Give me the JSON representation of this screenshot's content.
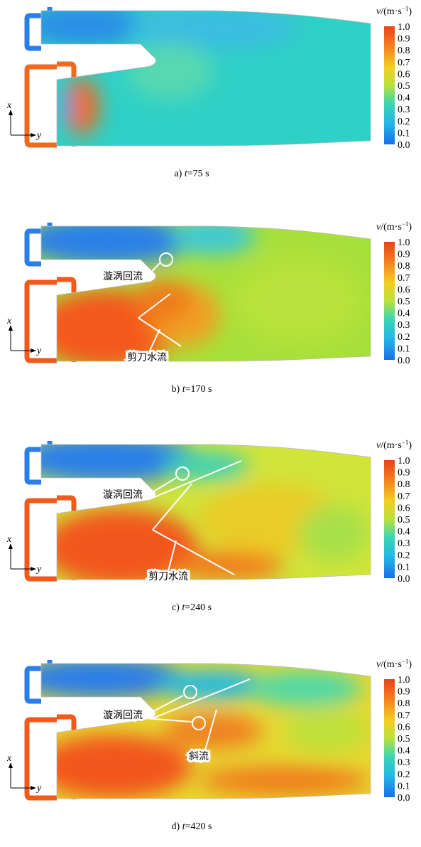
{
  "colorbar": {
    "symbol": "v",
    "unit": "/(m·s",
    "exponent": "−1",
    "close": ")",
    "ticks": [
      "1.0",
      "0.9",
      "0.8",
      "0.7",
      "0.6",
      "0.5",
      "0.4",
      "0.3",
      "0.2",
      "0.1",
      "0.0"
    ]
  },
  "axes": {
    "x": "x",
    "y": "y"
  },
  "panels": [
    {
      "label": "a)",
      "variable": "t",
      "rest": "=75 s",
      "annotations": []
    },
    {
      "label": "b)",
      "variable": "t",
      "rest": "=170 s",
      "annotations": [
        "漩涡回流",
        "剪刀水流"
      ]
    },
    {
      "label": "c)",
      "variable": "t",
      "rest": "=240 s",
      "annotations": [
        "漩涡回流",
        "剪刀水流"
      ]
    },
    {
      "label": "d)",
      "variable": "t",
      "rest": "=420 s",
      "annotations": [
        "漩涡回流",
        "斜流"
      ]
    }
  ]
}
